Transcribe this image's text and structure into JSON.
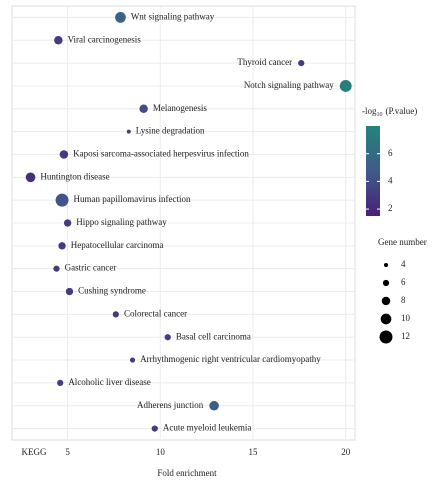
{
  "chart_data": {
    "type": "bubble",
    "xlabel": "Fold enrichment",
    "ylabel": "KEGG",
    "categories": [
      "Wnt signaling pathway",
      "Viral carcinogenesis",
      "Thyroid cancer",
      "Notch signaling pathway",
      "Melanogenesis",
      "Lysine degradation",
      "Kaposi sarcoma-associated herpesvirus infection",
      "Huntington disease",
      "Human papillomavirus infection",
      "Hippo signaling pathway",
      "Hepatocellular carcinoma",
      "Gastric cancer",
      "Cushing syndrome",
      "Colorectal cancer",
      "Basal cell carcinoma",
      "Arrhythmogenic right ventricular cardiomyopathy",
      "Alcoholic liver disease",
      "Adherens junction",
      "Acute myeloid leukemia"
    ],
    "values": [
      7.85,
      4.5,
      17.6,
      20.0,
      9.1,
      8.3,
      4.8,
      3.0,
      4.7,
      5.0,
      4.7,
      4.4,
      5.1,
      7.6,
      10.4,
      8.5,
      4.6,
      12.9,
      9.7
    ],
    "sizes": [
      10,
      8,
      6,
      11,
      8,
      4,
      8,
      9,
      12,
      7,
      7,
      6,
      7,
      6,
      6,
      5,
      6,
      9,
      6
    ],
    "color_values": [
      5.5,
      3.0,
      3.0,
      7.5,
      4.0,
      3.0,
      3.0,
      2.5,
      4.5,
      3.0,
      3.0,
      3.0,
      3.0,
      3.0,
      3.0,
      3.0,
      3.0,
      5.0,
      3.0
    ],
    "xlim": [
      2,
      20.5
    ],
    "xticks": [
      5,
      10,
      15,
      20
    ],
    "grid": true,
    "colorbar": {
      "title": {
        "base": "-log",
        "sub": "10",
        "rest": "(P.value)"
      },
      "lim": [
        1.5,
        8
      ],
      "ticks": [
        2,
        4,
        6
      ],
      "colors": [
        "#4a1f77",
        "#3f5b8a",
        "#23847a"
      ]
    },
    "size_legend": {
      "title": "Gene number",
      "values": [
        4,
        6,
        8,
        10,
        12
      ]
    }
  }
}
